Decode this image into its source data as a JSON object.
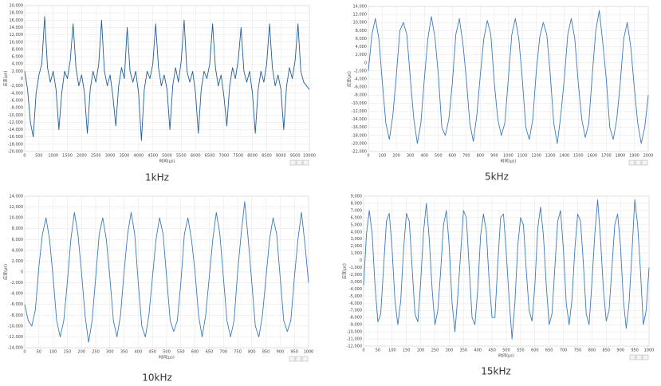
{
  "chart_data": [
    {
      "type": "line",
      "caption": "1kHz",
      "ylabel": "应变(με)",
      "xlabel": "时间(μs)",
      "color": "#1f5f99",
      "xlim": [
        0,
        10000
      ],
      "ylim": [
        -20000,
        20000
      ],
      "grid": true,
      "xticks": [
        0,
        500,
        1000,
        1500,
        2000,
        2500,
        3000,
        3500,
        4000,
        4500,
        5000,
        5500,
        6000,
        6500,
        7000,
        7500,
        8000,
        8500,
        9000,
        9500,
        10000
      ],
      "yticks": [
        {
          "value": -20000,
          "label": "-20,000"
        },
        {
          "value": -18000,
          "label": "-18,000"
        },
        {
          "value": -16000,
          "label": "-16,000"
        },
        {
          "value": -14000,
          "label": "-14,000"
        },
        {
          "value": -12000,
          "label": "-12,000"
        },
        {
          "value": -10000,
          "label": "-10,000"
        },
        {
          "value": -8000,
          "label": "-8,000"
        },
        {
          "value": -6000,
          "label": "-6,000"
        },
        {
          "value": -4000,
          "label": "-4,000"
        },
        {
          "value": -2000,
          "label": "-2,000"
        },
        0,
        {
          "value": 2000,
          "label": "2,000"
        },
        {
          "value": 4000,
          "label": "4,000"
        },
        {
          "value": 6000,
          "label": "6,000"
        },
        {
          "value": 8000,
          "label": "8,000"
        },
        {
          "value": 10000,
          "label": "10,000"
        },
        {
          "value": 12000,
          "label": "12,000"
        },
        {
          "value": 14000,
          "label": "14,000"
        },
        {
          "value": 16000,
          "label": "16,000"
        },
        {
          "value": 18000,
          "label": "18,000"
        },
        {
          "value": 20000,
          "label": "20,000"
        }
      ],
      "x": [
        0,
        100,
        200,
        300,
        400,
        500,
        600,
        700,
        800,
        900,
        1000,
        1100,
        1200,
        1300,
        1400,
        1500,
        1600,
        1700,
        1800,
        1900,
        2000,
        2100,
        2200,
        2300,
        2400,
        2500,
        2600,
        2700,
        2800,
        2900,
        3000,
        3100,
        3200,
        3300,
        3400,
        3500,
        3600,
        3700,
        3800,
        3900,
        4000,
        4100,
        4200,
        4300,
        4400,
        4500,
        4600,
        4700,
        4800,
        4900,
        5000,
        5100,
        5200,
        5300,
        5400,
        5500,
        5600,
        5700,
        5800,
        5900,
        6000,
        6100,
        6200,
        6300,
        6400,
        6500,
        6600,
        6700,
        6800,
        6900,
        7000,
        7100,
        7200,
        7300,
        7400,
        7500,
        7600,
        7700,
        7800,
        7900,
        8000,
        8100,
        8200,
        8300,
        8400,
        8500,
        8600,
        8700,
        8800,
        8900,
        9000,
        9100,
        9200,
        9300,
        9400,
        9500,
        9600,
        9700,
        9800,
        9900,
        10000
      ],
      "values": [
        2000,
        -3000,
        -12000,
        -16000,
        -4000,
        1000,
        4000,
        17000,
        3000,
        -1000,
        2000,
        -3000,
        -14000,
        -4000,
        2000,
        0,
        5000,
        15000,
        3000,
        -2000,
        1000,
        -4000,
        -15000,
        -3000,
        2000,
        -1000,
        4000,
        16000,
        2000,
        -2000,
        1000,
        -5000,
        -13000,
        -2000,
        3000,
        0,
        14000,
        2000,
        -1000,
        2000,
        -4000,
        -17000,
        -3000,
        2000,
        0,
        4000,
        15000,
        3000,
        -2000,
        1000,
        -3000,
        -14000,
        -2000,
        3000,
        -1000,
        5000,
        16000,
        2000,
        -1000,
        2000,
        -4000,
        -15000,
        -3000,
        2000,
        0,
        4000,
        15000,
        3000,
        -2000,
        1000,
        -5000,
        -13000,
        -2000,
        3000,
        0,
        5000,
        14000,
        2000,
        -1000,
        2000,
        -4000,
        -15000,
        -3000,
        2000,
        -1000,
        4000,
        15000,
        3000,
        -2000,
        1000,
        -3000,
        -14000,
        -2000,
        3000,
        0,
        5000,
        15000,
        2000,
        -1000,
        -2000,
        -3000
      ]
    },
    {
      "type": "line",
      "caption": "5kHz",
      "ylabel": "应变(με)",
      "xlabel": "时间(μs)",
      "color": "#3a7bbf",
      "xlim": [
        0,
        2000
      ],
      "ylim": [
        -22000,
        14000
      ],
      "grid": true,
      "xticks": [
        0,
        100,
        200,
        300,
        400,
        500,
        600,
        700,
        800,
        900,
        1000,
        1100,
        1200,
        1300,
        1400,
        1500,
        1600,
        1700,
        1800,
        1900,
        2000
      ],
      "yticks": [
        {
          "value": -22000,
          "label": "-22,000"
        },
        {
          "value": -20000,
          "label": "-20,000"
        },
        {
          "value": -18000,
          "label": "-18,000"
        },
        {
          "value": -16000,
          "label": "-16,000"
        },
        {
          "value": -14000,
          "label": "-14,000"
        },
        {
          "value": -12000,
          "label": "-12,000"
        },
        {
          "value": -10000,
          "label": "-10,000"
        },
        {
          "value": -8000,
          "label": "-8,000"
        },
        {
          "value": -6000,
          "label": "-6,000"
        },
        {
          "value": -4000,
          "label": "-4,000"
        },
        {
          "value": -2000,
          "label": "-2,000"
        },
        0,
        {
          "value": 2000,
          "label": "2,000"
        },
        {
          "value": 4000,
          "label": "4,000"
        },
        {
          "value": 6000,
          "label": "6,000"
        },
        {
          "value": 8000,
          "label": "8,000"
        },
        {
          "value": 10000,
          "label": "10,000"
        },
        {
          "value": 12000,
          "label": "12,000"
        },
        {
          "value": 14000,
          "label": "14,000"
        }
      ],
      "x": [
        0,
        25,
        50,
        75,
        100,
        125,
        150,
        175,
        200,
        225,
        250,
        275,
        300,
        325,
        350,
        375,
        400,
        425,
        450,
        475,
        500,
        525,
        550,
        575,
        600,
        625,
        650,
        675,
        700,
        725,
        750,
        775,
        800,
        825,
        850,
        875,
        900,
        925,
        950,
        975,
        1000,
        1025,
        1050,
        1075,
        1100,
        1125,
        1150,
        1175,
        1200,
        1225,
        1250,
        1275,
        1300,
        1325,
        1350,
        1375,
        1400,
        1425,
        1450,
        1475,
        1500,
        1525,
        1550,
        1575,
        1600,
        1625,
        1650,
        1675,
        1700,
        1725,
        1750,
        1775,
        1800,
        1825,
        1850,
        1875,
        1900,
        1925,
        1950,
        1975,
        2000
      ],
      "values": [
        -2000,
        7000,
        11000,
        6000,
        -5000,
        -15000,
        -19000,
        -13000,
        -3000,
        8000,
        10000,
        7000,
        -4000,
        -14000,
        -20000,
        -15000,
        -4000,
        6000,
        11500,
        6500,
        -3000,
        -16000,
        -18000,
        -14000,
        -5000,
        7000,
        11000,
        5000,
        -4000,
        -15000,
        -19500,
        -13000,
        -3000,
        6000,
        10500,
        7000,
        -5000,
        -14000,
        -18000,
        -15000,
        -4000,
        7000,
        11000,
        6000,
        -4000,
        -16000,
        -19000,
        -14000,
        -2000,
        6500,
        10000,
        7000,
        -3000,
        -15000,
        -20000,
        -13000,
        -4000,
        7000,
        11000,
        6000,
        -5000,
        -14000,
        -18500,
        -15000,
        -3000,
        8000,
        13000,
        5000,
        -4000,
        -16000,
        -19000,
        -14000,
        -5000,
        6000,
        10000,
        4000,
        -6000,
        -15000,
        -20000,
        -16000,
        -8000
      ]
    },
    {
      "type": "line",
      "caption": "10kHz",
      "ylabel": "应变(με)",
      "xlabel": "时间(μs)",
      "color": "#3a7bbf",
      "xlim": [
        0,
        1000
      ],
      "ylim": [
        -14000,
        14000
      ],
      "grid": true,
      "xticks": [
        0,
        50,
        100,
        150,
        200,
        250,
        300,
        350,
        400,
        450,
        500,
        550,
        600,
        650,
        700,
        750,
        800,
        850,
        900,
        950,
        1000
      ],
      "yticks": [
        {
          "value": -14000,
          "label": "-14,000"
        },
        {
          "value": -12000,
          "label": "-12,000"
        },
        {
          "value": -10000,
          "label": "-10,000"
        },
        {
          "value": -8000,
          "label": "-8,000"
        },
        {
          "value": -6000,
          "label": "-6,000"
        },
        {
          "value": -4000,
          "label": "-4,000"
        },
        {
          "value": -2000,
          "label": "-2,000"
        },
        0,
        {
          "value": 2000,
          "label": "2,000"
        },
        {
          "value": 4000,
          "label": "4,000"
        },
        {
          "value": 6000,
          "label": "6,000"
        },
        {
          "value": 8000,
          "label": "8,000"
        },
        {
          "value": 10000,
          "label": "10,000"
        },
        {
          "value": 12000,
          "label": "12,000"
        },
        {
          "value": 14000,
          "label": "14,000"
        }
      ],
      "x": [
        0,
        12.5,
        25,
        37.5,
        50,
        62.5,
        75,
        87.5,
        100,
        112.5,
        125,
        137.5,
        150,
        162.5,
        175,
        187.5,
        200,
        212.5,
        225,
        237.5,
        250,
        262.5,
        275,
        287.5,
        300,
        312.5,
        325,
        337.5,
        350,
        362.5,
        375,
        387.5,
        400,
        412.5,
        425,
        437.5,
        450,
        462.5,
        475,
        487.5,
        500,
        512.5,
        525,
        537.5,
        550,
        562.5,
        575,
        587.5,
        600,
        612.5,
        625,
        637.5,
        650,
        662.5,
        675,
        687.5,
        700,
        712.5,
        725,
        737.5,
        750,
        762.5,
        775,
        787.5,
        800,
        812.5,
        825,
        837.5,
        850,
        862.5,
        875,
        887.5,
        900,
        912.5,
        925,
        937.5,
        950,
        962.5,
        975,
        987.5,
        1000
      ],
      "values": [
        -6000,
        -9000,
        -10000,
        -7000,
        1000,
        7000,
        10000,
        6000,
        -1000,
        -9000,
        -12000,
        -9000,
        -2000,
        6000,
        11000,
        7000,
        0,
        -8000,
        -13000,
        -9000,
        -1000,
        7000,
        10000,
        6000,
        -1000,
        -9000,
        -12000,
        -8000,
        0,
        7000,
        11000,
        7000,
        -2000,
        -10000,
        -12000,
        -8000,
        -1000,
        6000,
        10000,
        7000,
        -1000,
        -9000,
        -11000,
        -9000,
        -2000,
        7000,
        10000,
        6000,
        0,
        -8000,
        -12000,
        -8000,
        -1000,
        6000,
        11000,
        7000,
        -1000,
        -9000,
        -12000,
        -9000,
        0,
        7000,
        13000,
        6000,
        -2000,
        -10000,
        -12000,
        -8000,
        -1000,
        6000,
        10000,
        7000,
        -1000,
        -9000,
        -11000,
        -9000,
        -1000,
        6000,
        11000,
        5000,
        -2000
      ]
    },
    {
      "type": "line",
      "caption": "15kHz",
      "ylabel": "应变(με)",
      "xlabel": "时间(μs)",
      "color": "#3a7bbf",
      "xlim": [
        0,
        1000
      ],
      "ylim": [
        -12000,
        9000
      ],
      "grid": true,
      "xticks": [
        0,
        50,
        100,
        150,
        200,
        250,
        300,
        350,
        400,
        450,
        500,
        550,
        600,
        650,
        700,
        750,
        800,
        850,
        900,
        950,
        1000
      ],
      "yticks": [
        {
          "value": -12000,
          "label": "-12,000"
        },
        {
          "value": -11000,
          "label": "-11,000"
        },
        {
          "value": -10000,
          "label": "-10,000"
        },
        {
          "value": -9000,
          "label": "-9,000"
        },
        {
          "value": -8000,
          "label": "-8,000"
        },
        {
          "value": -7000,
          "label": "-7,000"
        },
        {
          "value": -6000,
          "label": "-6,000"
        },
        {
          "value": -5000,
          "label": "-5,000"
        },
        {
          "value": -4000,
          "label": "-4,000"
        },
        {
          "value": -3000,
          "label": "-3,000"
        },
        {
          "value": -2000,
          "label": "-2,000"
        },
        {
          "value": -1000,
          "label": "-1,000"
        },
        0,
        {
          "value": 1000,
          "label": "1,000"
        },
        {
          "value": 2000,
          "label": "2,000"
        },
        {
          "value": 3000,
          "label": "3,000"
        },
        {
          "value": 4000,
          "label": "4,000"
        },
        {
          "value": 5000,
          "label": "5,000"
        },
        {
          "value": 6000,
          "label": "6,000"
        },
        {
          "value": 7000,
          "label": "7,000"
        },
        {
          "value": 8000,
          "label": "8,000"
        },
        {
          "value": 9000,
          "label": "9,000"
        }
      ],
      "x": [
        0,
        10,
        20,
        30,
        40,
        50,
        60,
        70,
        80,
        90,
        100,
        110,
        120,
        130,
        140,
        150,
        160,
        170,
        180,
        190,
        200,
        210,
        220,
        230,
        240,
        250,
        260,
        270,
        280,
        290,
        300,
        310,
        320,
        330,
        340,
        350,
        360,
        370,
        380,
        390,
        400,
        410,
        420,
        430,
        440,
        450,
        460,
        470,
        480,
        490,
        500,
        510,
        520,
        530,
        540,
        550,
        560,
        570,
        580,
        590,
        600,
        610,
        620,
        630,
        640,
        650,
        660,
        670,
        680,
        690,
        700,
        710,
        720,
        730,
        740,
        750,
        760,
        770,
        780,
        790,
        800,
        810,
        820,
        830,
        840,
        850,
        860,
        870,
        880,
        890,
        900,
        910,
        920,
        930,
        940,
        950,
        960,
        970,
        980,
        990,
        1000
      ],
      "values": [
        -3500,
        3700,
        7000,
        3700,
        -3500,
        -8600,
        -7500,
        -1000,
        5500,
        6600,
        1500,
        -5700,
        -9000,
        -5700,
        1500,
        6600,
        5500,
        -1000,
        -7500,
        -8600,
        -3000,
        4000,
        8000,
        3000,
        -4000,
        -9000,
        -7000,
        -1500,
        5000,
        7000,
        2000,
        -6000,
        -10000,
        -5000,
        1000,
        7000,
        6000,
        -1000,
        -8000,
        -9000,
        -4000,
        3500,
        6500,
        4000,
        -3000,
        -8000,
        -8000,
        -500,
        6000,
        6500,
        1000,
        -5500,
        -11000,
        -6000,
        2000,
        6000,
        5000,
        -1500,
        -7000,
        -8500,
        -3500,
        4500,
        7500,
        3500,
        -3500,
        -9000,
        -7500,
        -1000,
        5500,
        7000,
        1500,
        -6000,
        -9000,
        -5500,
        1500,
        6500,
        5500,
        -500,
        -7500,
        -9000,
        -3000,
        3700,
        8500,
        3000,
        -4000,
        -8500,
        -7000,
        -1000,
        5000,
        6500,
        2000,
        -5500,
        -9500,
        -6000,
        1000,
        8500,
        5000,
        -1500,
        -9000,
        -7000,
        -1000
      ]
    }
  ]
}
